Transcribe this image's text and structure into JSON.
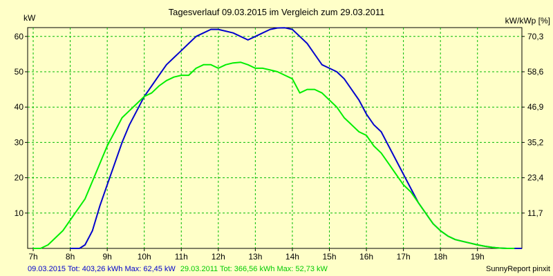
{
  "chart_data": {
    "type": "line",
    "title": "Tagesverlauf 09.03.2015 im Vergleich zum 29.03.2011",
    "ylabel_left": "kW",
    "ylabel_right": "kW/kWp [%]",
    "x_ticks": [
      "7h",
      "8h",
      "9h",
      "10h",
      "11h",
      "12h",
      "13h",
      "14h",
      "15h",
      "16h",
      "17h",
      "18h",
      "19h"
    ],
    "y_ticks_left": [
      "10",
      "20",
      "30",
      "40",
      "50",
      "60"
    ],
    "y_ticks_right": [
      "11,7",
      "23,4",
      "35,2",
      "46,9",
      "58,6",
      "70,3"
    ],
    "xlim": [
      6.85,
      20.2
    ],
    "ylim": [
      0,
      62.5
    ],
    "grid": true,
    "series": [
      {
        "name": "09.03.2015",
        "color": "#0000CC",
        "x": [
          8.0,
          8.25,
          8.4,
          8.6,
          8.8,
          9.0,
          9.2,
          9.4,
          9.6,
          9.8,
          10.0,
          10.2,
          10.4,
          10.6,
          10.8,
          11.0,
          11.2,
          11.4,
          11.6,
          11.8,
          12.0,
          12.2,
          12.4,
          12.6,
          12.8,
          13.0,
          13.2,
          13.4,
          13.6,
          13.8,
          14.0,
          14.2,
          14.4,
          14.6,
          14.8,
          15.0,
          15.2,
          15.4,
          15.6,
          15.8,
          16.0,
          16.2,
          16.4,
          16.6,
          16.8,
          17.0,
          17.2,
          17.4,
          17.6,
          17.8,
          18.0,
          18.2,
          18.4,
          18.6,
          18.8,
          19.0,
          19.2,
          19.4,
          19.6,
          19.8,
          20.0,
          20.2
        ],
        "y": [
          0,
          0,
          1,
          5,
          12,
          18,
          24,
          30,
          35,
          39,
          43,
          46,
          49,
          52,
          54,
          56,
          58,
          60,
          61,
          62,
          62,
          61.5,
          61,
          60,
          59,
          60,
          61,
          62,
          62.4,
          62.45,
          62,
          60,
          58,
          55,
          52,
          51,
          50,
          48,
          45,
          42,
          38,
          35,
          33,
          29,
          25,
          21,
          17,
          13,
          10,
          7,
          5,
          3.5,
          2.5,
          2,
          1.5,
          1,
          0.6,
          0.3,
          0.1,
          0,
          0,
          0
        ]
      },
      {
        "name": "29.03.2011",
        "color": "#00EE00",
        "x": [
          7.0,
          7.2,
          7.4,
          7.6,
          7.8,
          8.0,
          8.2,
          8.4,
          8.6,
          8.8,
          9.0,
          9.2,
          9.4,
          9.6,
          9.8,
          10.0,
          10.2,
          10.4,
          10.6,
          10.8,
          11.0,
          11.2,
          11.4,
          11.6,
          11.8,
          12.0,
          12.2,
          12.4,
          12.6,
          12.8,
          13.0,
          13.2,
          13.4,
          13.6,
          13.8,
          14.0,
          14.2,
          14.4,
          14.6,
          14.8,
          15.0,
          15.2,
          15.4,
          15.6,
          15.8,
          16.0,
          16.2,
          16.4,
          16.6,
          16.8,
          17.0,
          17.2,
          17.4,
          17.6,
          17.8,
          18.0,
          18.2,
          18.4,
          18.6,
          18.8,
          19.0,
          19.2,
          19.4,
          19.6,
          19.8,
          20.0
        ],
        "y": [
          0,
          0,
          1,
          3,
          5,
          8,
          11,
          14,
          19,
          24,
          29,
          33,
          37,
          39,
          41,
          43,
          44,
          46,
          47.5,
          48.5,
          49,
          49,
          51,
          52,
          52,
          51,
          52,
          52.5,
          52.7,
          52,
          51,
          51,
          50.5,
          50,
          49,
          48,
          44,
          45,
          45,
          44,
          42,
          40,
          37,
          35,
          33,
          32,
          29,
          27,
          24,
          21,
          18,
          16,
          13,
          10,
          7,
          5,
          3.5,
          2.5,
          2,
          1.5,
          1,
          0.6,
          0.3,
          0.1,
          0,
          0
        ]
      }
    ],
    "footer": {
      "s1_text": "09.03.2015 Tot: 403,26 kWh Max: 62,45 kW",
      "s2_text": "29.03.2011 Tot: 366,56 kWh Max: 52,73 kW",
      "brand": "SunnyReport pinxit"
    }
  }
}
